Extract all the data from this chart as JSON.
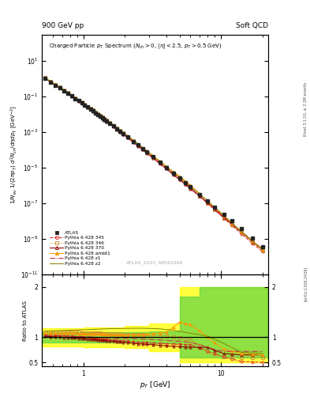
{
  "title_top_left": "900 GeV pp",
  "title_top_right": "Soft QCD",
  "plot_title": "Charged Particle $p_T$ Spectrum ($N_{ch} > 0$, $|\\eta| < 2.5$, $p_T > 0.5$ GeV)",
  "xlabel": "$p_T$ [GeV]",
  "ylabel": "$1/N_{ev}$ $1/(2\\pi p_T)$ $d^2N_{ch}/d\\eta dp_T$ [GeV$^{-2}$]",
  "ylabel_ratio": "Ratio to ATLAS",
  "watermark": "ATLAS_2010_S8591806",
  "xlim": [
    0.5,
    22
  ],
  "ylim_main": [
    1e-11,
    300.0
  ],
  "ylim_ratio": [
    0.42,
    2.25
  ],
  "series": [
    {
      "label": "ATLAS",
      "color": "#222222",
      "marker": "s",
      "linestyle": "none",
      "filled": true
    },
    {
      "label": "Pythia 6.428 345",
      "color": "#dd2222",
      "marker": "o",
      "linestyle": "--",
      "filled": false
    },
    {
      "label": "Pythia 6.428 346",
      "color": "#cc8833",
      "marker": "s",
      "linestyle": ":",
      "filled": false
    },
    {
      "label": "Pythia 6.428 370",
      "color": "#880000",
      "marker": "^",
      "linestyle": "-",
      "filled": false
    },
    {
      "label": "Pythia 6.428 ambt1",
      "color": "#ff9900",
      "marker": "^",
      "linestyle": "-",
      "filled": true
    },
    {
      "label": "Pythia 6.428 z1",
      "color": "#cc2244",
      "marker": "none",
      "linestyle": "-.",
      "filled": false
    },
    {
      "label": "Pythia 6.428 z2",
      "color": "#888800",
      "marker": "none",
      "linestyle": "-",
      "filled": false
    }
  ],
  "band_yellow_color": "#ffff00",
  "band_yellow_alpha": 0.75,
  "band_green_color": "#44cc44",
  "band_green_alpha": 0.6,
  "fig_bg": "#ffffff"
}
